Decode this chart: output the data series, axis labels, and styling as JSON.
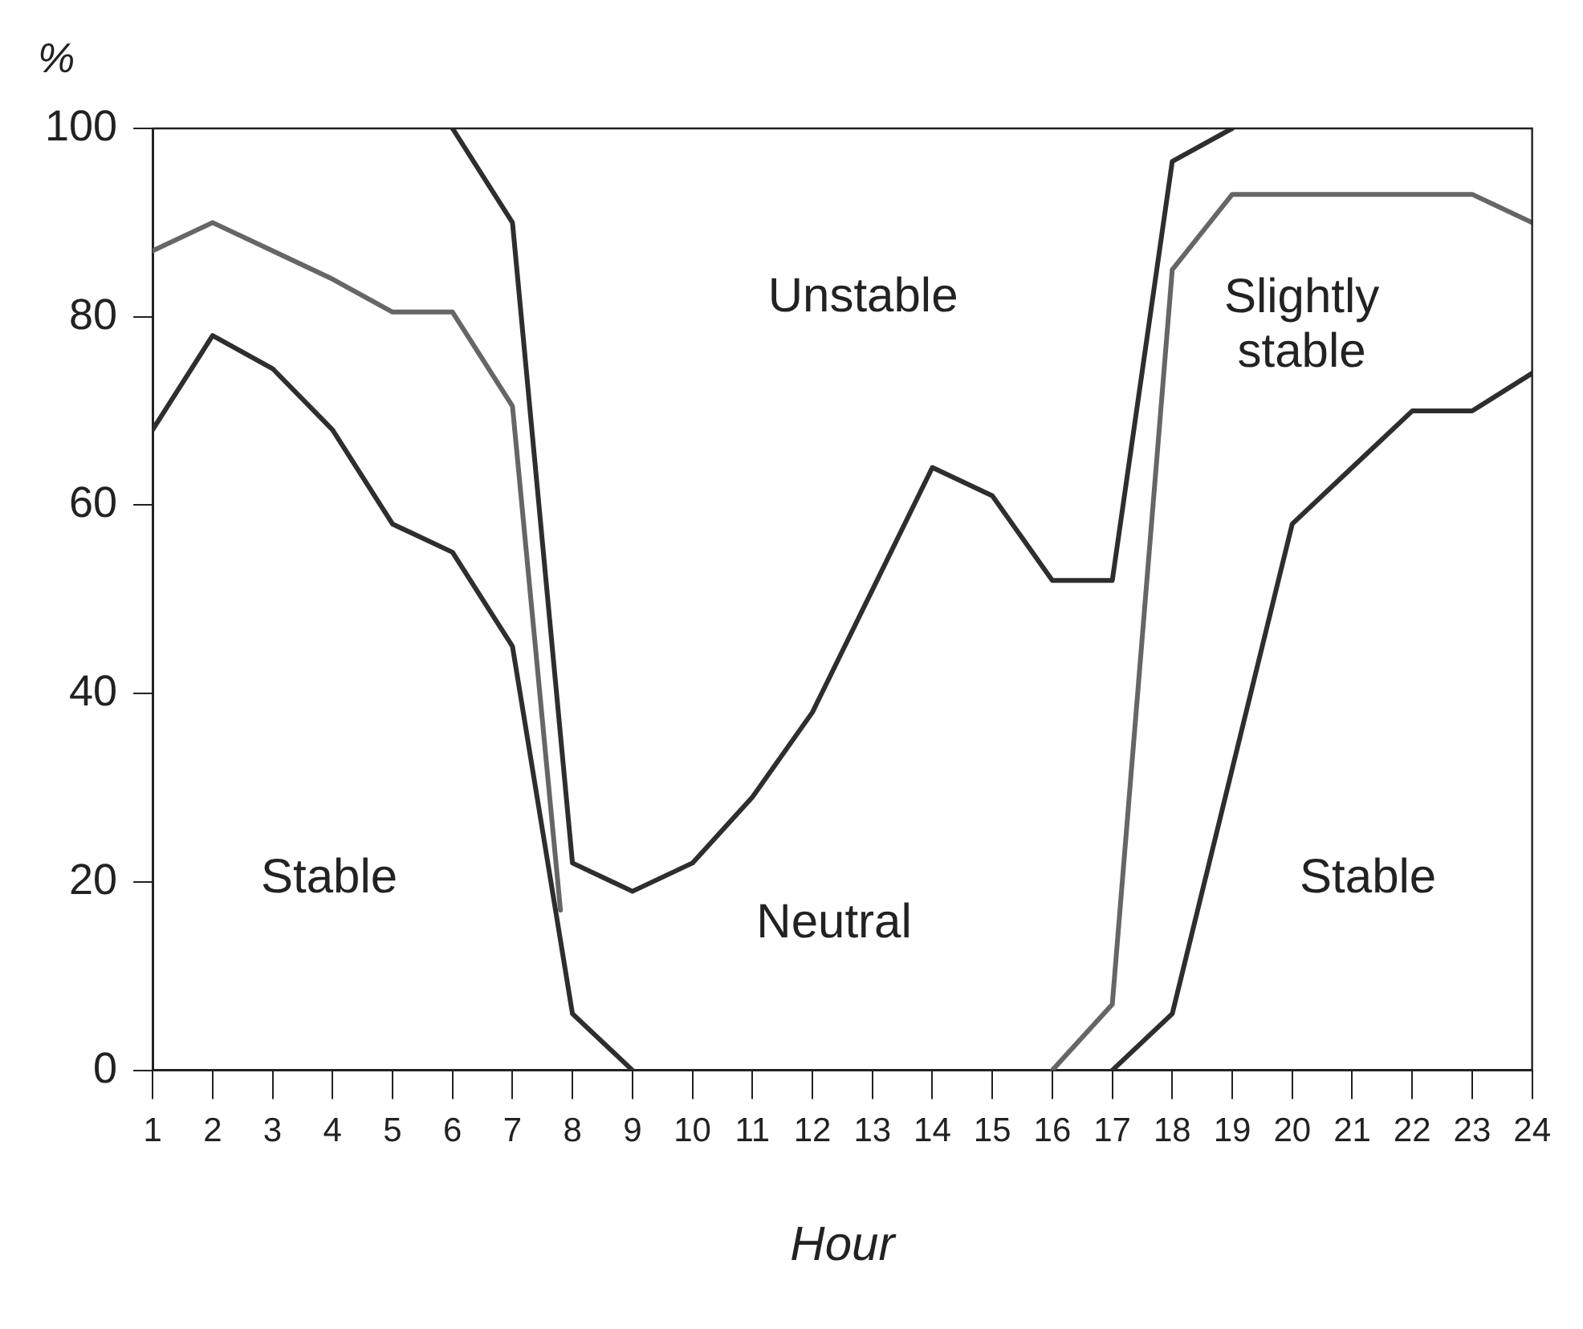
{
  "chart_data": {
    "type": "line",
    "xlabel": "Hour",
    "ylabel": "%",
    "xlim": [
      1,
      24
    ],
    "xticks": [
      1,
      2,
      3,
      4,
      5,
      6,
      7,
      8,
      9,
      10,
      11,
      12,
      13,
      14,
      15,
      16,
      17,
      18,
      19,
      20,
      21,
      22,
      23,
      24
    ],
    "ylim": [
      0,
      100
    ],
    "yticks": [
      0,
      20,
      40,
      60,
      80,
      100
    ],
    "grid": false,
    "legend": false,
    "marker": "none",
    "line_style": "solid",
    "series": [
      {
        "color": "#2e2e2e",
        "x": [
          1,
          2,
          3,
          4,
          5,
          6,
          7,
          8,
          9,
          10,
          11,
          12,
          13,
          14,
          15,
          16,
          17,
          18,
          19,
          20,
          21,
          22,
          23,
          24
        ],
        "values": [
          68,
          78,
          74.5,
          68,
          58,
          55,
          45,
          6,
          0,
          null,
          null,
          null,
          null,
          null,
          null,
          null,
          0,
          6,
          32,
          58,
          64,
          70,
          70,
          74
        ]
      },
      {
        "color": "#666666",
        "x": [
          1,
          2,
          3,
          4,
          5,
          6,
          7,
          7.8,
          8.5,
          16,
          17,
          18,
          19,
          20,
          21,
          22,
          23,
          24
        ],
        "values": [
          87,
          90,
          87,
          84,
          80.5,
          80.5,
          70.5,
          17,
          null,
          0,
          7,
          85,
          93,
          93,
          93,
          93,
          93,
          90
        ]
      },
      {
        "color": "#2e2e2e",
        "x": [
          6,
          7,
          8,
          9,
          10,
          11,
          12,
          13,
          14,
          15,
          16,
          17,
          18,
          19
        ],
        "values": [
          100,
          90,
          22,
          19,
          22,
          29,
          38,
          51,
          64,
          61,
          52,
          52,
          96.5,
          100
        ]
      }
    ],
    "annotations": [
      "Unstable",
      "Slightly\nstable",
      "Stable",
      "Neutral",
      "Stable"
    ]
  }
}
